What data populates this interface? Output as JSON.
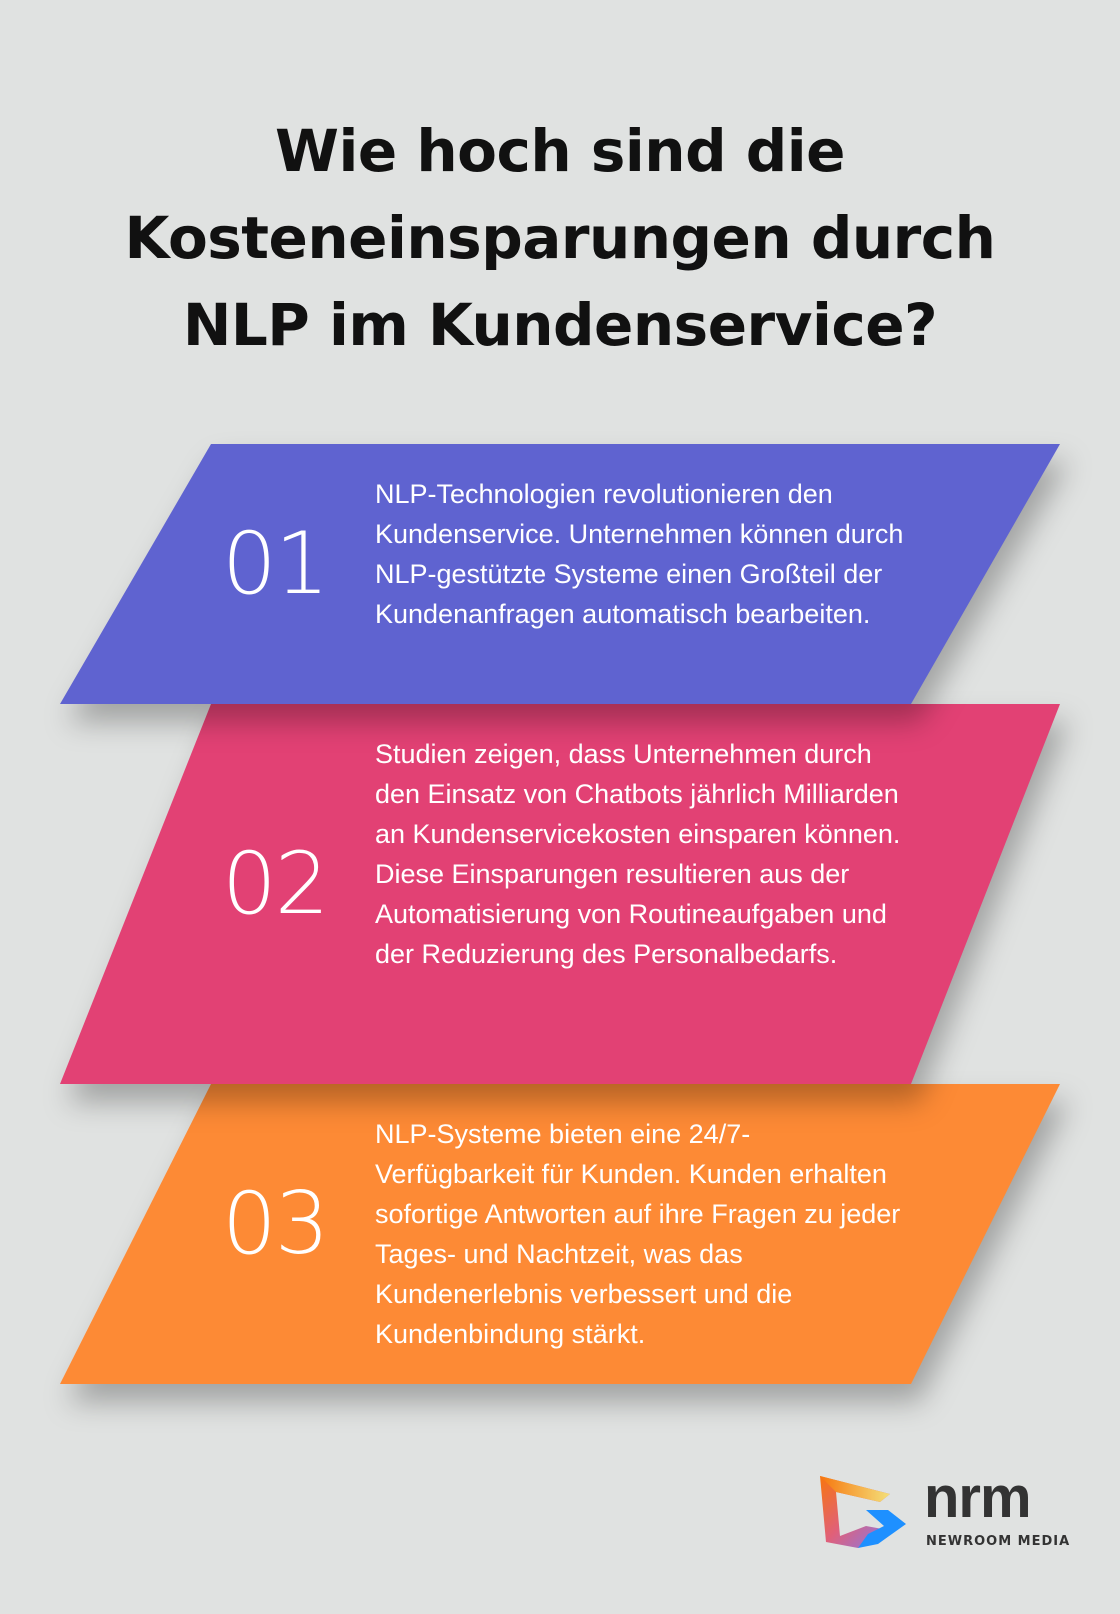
{
  "title": {
    "lines": [
      "Wie hoch sind die",
      "Kosteneinsparungen durch",
      "NLP im Kundenservice?"
    ]
  },
  "colors": {
    "background": "#e0e2e1",
    "card_1": "#5f63d0",
    "card_2": "#e24174",
    "card_3": "#fd8a35"
  },
  "cards": [
    {
      "number": "01",
      "text": "NLP-Technologien revolutionieren den Kundenservice. Unternehmen können durch NLP-gestützte Systeme einen Großteil der Kundenanfragen automatisch bearbeiten."
    },
    {
      "number": "02",
      "text": "Studien zeigen, dass Unternehmen durch den Einsatz von Chatbots jährlich Milliarden an Kundenservicekosten einsparen können. Diese Einsparungen resultieren aus der Automatisierung von Routineaufgaben und der Reduzierung des Personalbedarfs."
    },
    {
      "number": "03",
      "text": "NLP-Systeme bieten eine 24/7-Verfügbarkeit für Kunden. Kunden erhalten sofortige Antworten auf ihre Fragen zu jeder Tages- und Nachtzeit, was das Kundenerlebnis verbessert und die Kundenbindung stärkt."
    }
  ],
  "logo": {
    "word": "nrm",
    "subtitle": "NEWROOM MEDIA",
    "icon": "nrm-logo-icon"
  }
}
